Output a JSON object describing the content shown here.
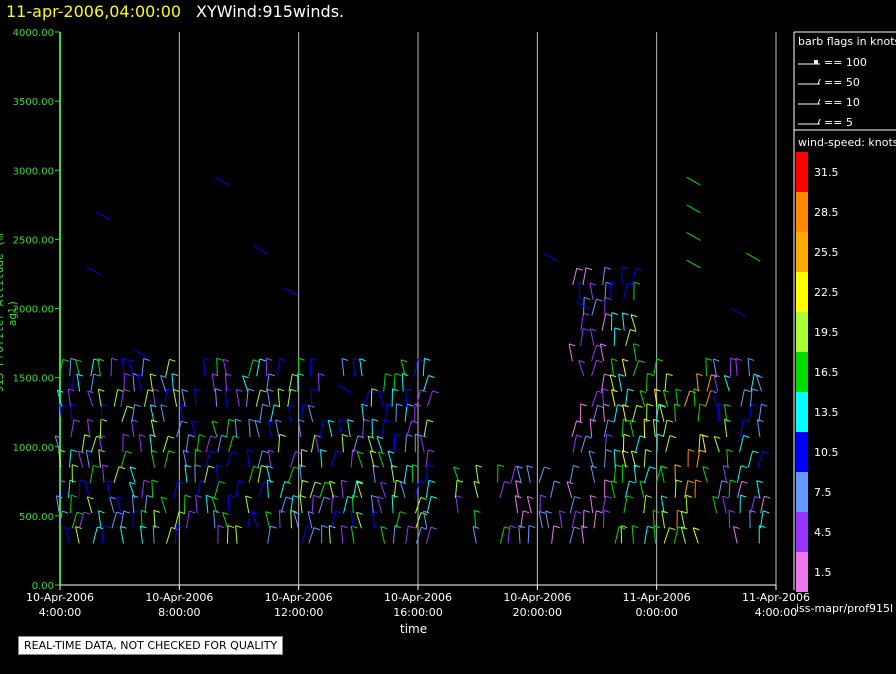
{
  "header": {
    "datetime": "11-apr-2006,04:00:00",
    "title": "XYWind:915winds."
  },
  "notice": "REAL-TIME DATA, NOT CHECKED FOR QUALITY",
  "credit": "iss-mapr/prof915l",
  "legend": {
    "barb_title": "barb flags in knots",
    "barb_items": [
      "== 100",
      "== 50",
      "== 10",
      "== 5"
    ],
    "speed_title": "wind-speed: knots",
    "speed_items": [
      {
        "label": "31.5",
        "color": "#ff0000"
      },
      {
        "label": "28.5",
        "color": "#ff8800"
      },
      {
        "label": "25.5",
        "color": "#ffaa00"
      },
      {
        "label": "22.5",
        "color": "#ffff00"
      },
      {
        "label": "19.5",
        "color": "#aaff33"
      },
      {
        "label": "16.5",
        "color": "#00dd00"
      },
      {
        "label": "13.5",
        "color": "#00ffff"
      },
      {
        "label": "10.5",
        "color": "#0000ff"
      },
      {
        "label": "7.5",
        "color": "#6699ff"
      },
      {
        "label": "4.5",
        "color": "#9933ff"
      },
      {
        "label": "1.5",
        "color": "#ee77ee"
      }
    ]
  },
  "chart_data": {
    "type": "scatter",
    "ylabel": "915 Profiler Altitude (m agl)",
    "xlabel": "time",
    "ylim": [
      0,
      4000
    ],
    "yticks": [
      "0.00",
      "500.00",
      "1000.00",
      "1500.00",
      "2000.00",
      "2500.00",
      "3000.00",
      "3500.00",
      "4000.00"
    ],
    "xlim_hours": [
      0,
      24
    ],
    "xticks": [
      {
        "line1": "10-Apr-2006",
        "line2": "4:00:00"
      },
      {
        "line1": "10-Apr-2006",
        "line2": "8:00:00"
      },
      {
        "line1": "10-Apr-2006",
        "line2": "12:00:00"
      },
      {
        "line1": "10-Apr-2006",
        "line2": "16:00:00"
      },
      {
        "line1": "10-Apr-2006",
        "line2": "20:00:00"
      },
      {
        "line1": "11-Apr-2006",
        "line2": "0:00:00"
      },
      {
        "line1": "11-Apr-2006",
        "line2": "4:00:00"
      }
    ],
    "grid": "vertical",
    "axis_color": "#33dd33",
    "legend_position": "right"
  }
}
